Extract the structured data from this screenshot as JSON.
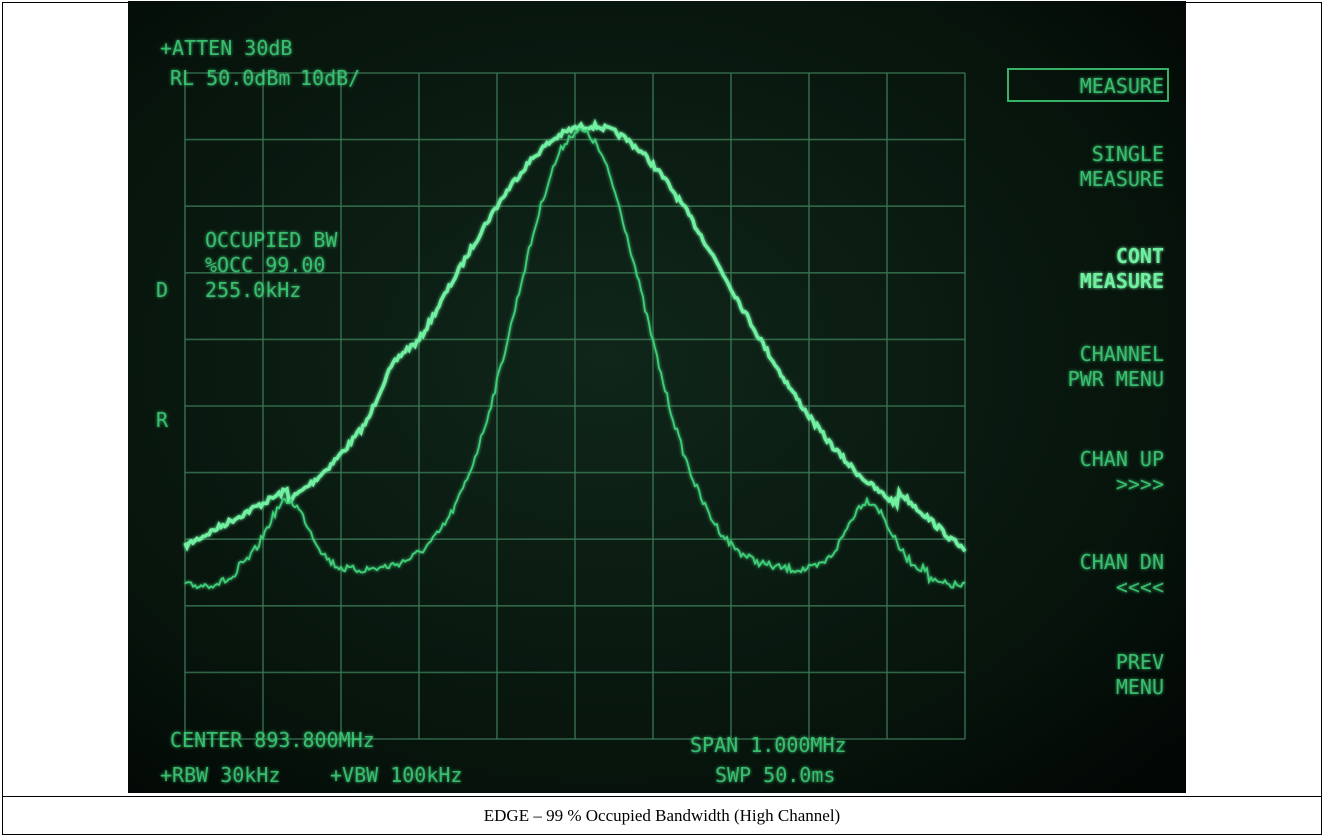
{
  "header": {
    "atten": "+ATTEN 30dB",
    "ref_level": "RL 50.0dBm",
    "scale": "10dB/"
  },
  "softkeys": [
    {
      "lines": [
        "MEASURE"
      ]
    },
    {
      "lines": [
        "SINGLE",
        "MEASURE"
      ]
    },
    {
      "lines": [
        "CONT",
        "MEASURE"
      ]
    },
    {
      "lines": [
        "CHANNEL",
        "PWR MENU"
      ]
    },
    {
      "lines": [
        "CHAN UP",
        ">>>>"
      ]
    },
    {
      "lines": [
        "CHAN DN",
        "<<<<"
      ]
    },
    {
      "lines": [
        "PREV",
        "MENU"
      ]
    }
  ],
  "readout": {
    "title": "OCCUPIED BW",
    "percent": "%OCC 99.00",
    "bandwidth": "255.0kHz"
  },
  "markers": [
    "D",
    "R"
  ],
  "footer": {
    "center": "CENTER 893.800MHz",
    "span": "SPAN 1.000MHz",
    "rbw": "+RBW 30kHz",
    "vbw": "+VBW 100kHz",
    "sweep": "SWP 50.0ms"
  },
  "caption": "EDGE – 99 % Occupied Bandwidth (High Channel)"
}
